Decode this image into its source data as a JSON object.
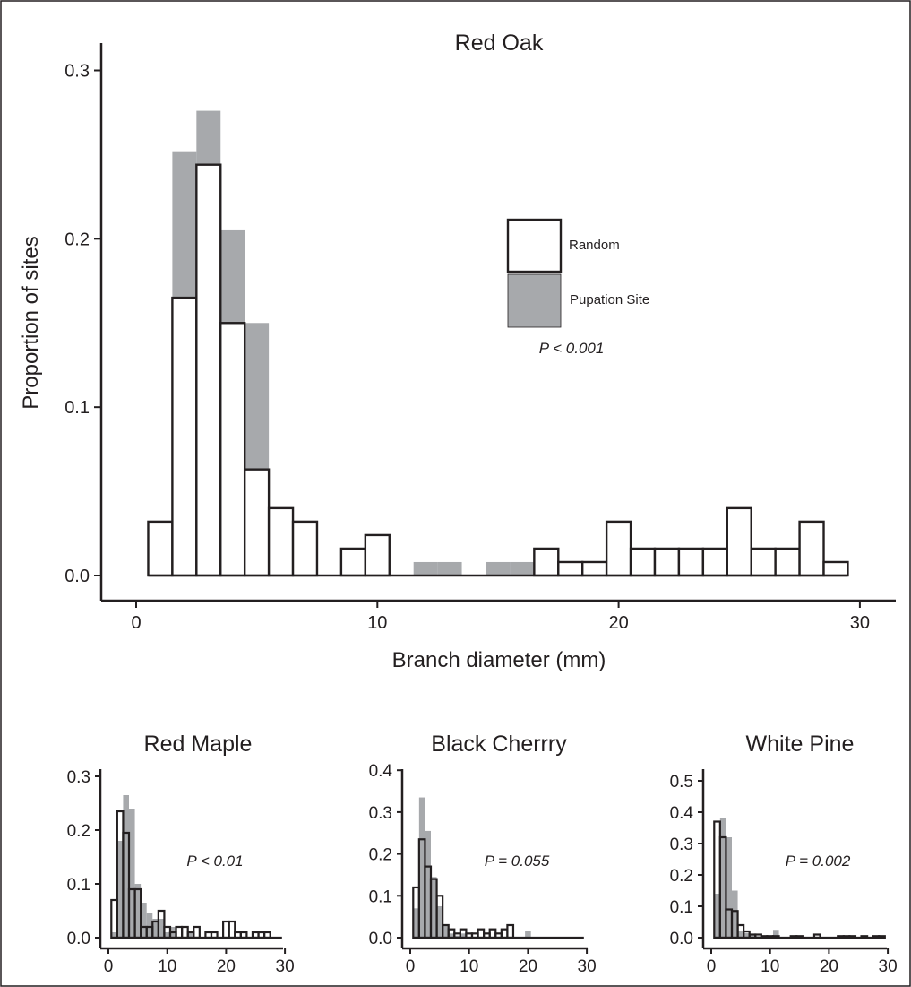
{
  "colors": {
    "pupation": "#a7a9ac",
    "random_fill": "#ffffff",
    "outline": "#231f20",
    "background": "#ffffff"
  },
  "main": {
    "title": "Red Oak",
    "xlabel": "Branch diameter (mm)",
    "ylabel": "Proportion of sites",
    "p_value": "P < 0.001",
    "legend": {
      "random": "Random",
      "pupation": "Pupation Site",
      "position": "upper-center"
    }
  },
  "panels": [
    {
      "title": "Red Maple",
      "p_value": "P < 0.01"
    },
    {
      "title": "Black Cherrry",
      "p_value": "P = 0.055"
    },
    {
      "title": "White Pine",
      "p_value": "P = 0.002"
    }
  ],
  "chart_data": [
    {
      "type": "bar",
      "subtype": "overlaid histogram",
      "title": "Red Oak",
      "xlabel": "Branch diameter (mm)",
      "ylabel": "Proportion of sites",
      "xlim": [
        0,
        30
      ],
      "ylim": [
        0,
        0.3
      ],
      "xticks": [
        0,
        10,
        20,
        30
      ],
      "yticks": [
        0.0,
        0.1,
        0.2,
        0.3
      ],
      "bin_width": 1,
      "x": [
        1,
        2,
        3,
        4,
        5,
        6,
        7,
        8,
        9,
        10,
        11,
        12,
        13,
        14,
        15,
        16,
        17,
        18,
        19,
        20,
        21,
        22,
        23,
        24,
        25,
        26,
        27,
        28,
        29
      ],
      "series": [
        {
          "name": "Random",
          "values": [
            0.032,
            0.165,
            0.244,
            0.15,
            0.063,
            0.04,
            0.032,
            0,
            0.016,
            0.024,
            0,
            0,
            0,
            0,
            0,
            0,
            0.016,
            0.008,
            0.008,
            0.032,
            0.016,
            0.016,
            0.016,
            0.016,
            0.04,
            0.016,
            0.016,
            0.032,
            0.008
          ]
        },
        {
          "name": "Pupation Site",
          "values": [
            0.016,
            0.252,
            0.276,
            0.205,
            0.15,
            0.024,
            0.032,
            0,
            0.016,
            0,
            0,
            0.008,
            0.008,
            0,
            0.008,
            0.008,
            0,
            0,
            0,
            0,
            0,
            0,
            0,
            0,
            0,
            0,
            0,
            0,
            0
          ]
        }
      ],
      "annotations": [
        "P < 0.001"
      ],
      "legend": "upper-center"
    },
    {
      "type": "bar",
      "subtype": "overlaid histogram",
      "title": "Red Maple",
      "xlim": [
        0,
        30
      ],
      "ylim": [
        0,
        0.3
      ],
      "xticks": [
        0,
        10,
        20,
        30
      ],
      "yticks": [
        0.0,
        0.1,
        0.2,
        0.3
      ],
      "bin_width": 1,
      "x": [
        1,
        2,
        3,
        4,
        5,
        6,
        7,
        8,
        9,
        10,
        11,
        12,
        13,
        14,
        15,
        16,
        17,
        18,
        19,
        20,
        21,
        22,
        23,
        24,
        25,
        26,
        27,
        28,
        29
      ],
      "series": [
        {
          "name": "Random",
          "values": [
            0.07,
            0.235,
            0.195,
            0.09,
            0.09,
            0.02,
            0.02,
            0.03,
            0.05,
            0.02,
            0.01,
            0.02,
            0.02,
            0.01,
            0.02,
            0,
            0.01,
            0.01,
            0,
            0.03,
            0.03,
            0.01,
            0.01,
            0,
            0.01,
            0.01,
            0.01,
            0,
            0
          ]
        },
        {
          "name": "Pupation Site",
          "values": [
            0.01,
            0.18,
            0.265,
            0.24,
            0.1,
            0.065,
            0.045,
            0.035,
            0.035,
            0.01,
            0.02,
            0,
            0,
            0.01,
            0,
            0,
            0,
            0,
            0,
            0,
            0,
            0,
            0,
            0,
            0,
            0,
            0,
            0,
            0
          ]
        }
      ],
      "annotations": [
        "P < 0.01"
      ]
    },
    {
      "type": "bar",
      "subtype": "overlaid histogram",
      "title": "Black Cherrry",
      "xlim": [
        0,
        30
      ],
      "ylim": [
        0,
        0.4
      ],
      "xticks": [
        0,
        10,
        20,
        30
      ],
      "yticks": [
        0.0,
        0.1,
        0.2,
        0.3,
        0.4
      ],
      "bin_width": 1,
      "x": [
        1,
        2,
        3,
        4,
        5,
        6,
        7,
        8,
        9,
        10,
        11,
        12,
        13,
        14,
        15,
        16,
        17,
        18,
        19,
        20,
        21,
        22,
        23,
        24,
        25,
        26,
        27,
        28,
        29
      ],
      "series": [
        {
          "name": "Random",
          "values": [
            0.12,
            0.235,
            0.17,
            0.14,
            0.1,
            0.03,
            0.02,
            0.01,
            0.02,
            0.01,
            0.01,
            0.02,
            0.01,
            0.02,
            0.01,
            0.02,
            0.03,
            0,
            0,
            0,
            0,
            0,
            0,
            0,
            0,
            0,
            0,
            0,
            0
          ]
        },
        {
          "name": "Pupation Site",
          "values": [
            0.07,
            0.335,
            0.255,
            0.145,
            0.075,
            0.03,
            0.01,
            0.005,
            0.01,
            0,
            0,
            0,
            0,
            0,
            0,
            0,
            0,
            0,
            0,
            0.015,
            0,
            0,
            0,
            0,
            0,
            0,
            0,
            0,
            0
          ]
        }
      ],
      "annotations": [
        "P = 0.055"
      ]
    },
    {
      "type": "bar",
      "subtype": "overlaid histogram",
      "title": "White Pine",
      "xlim": [
        0,
        30
      ],
      "ylim": [
        0,
        0.5
      ],
      "xticks": [
        0,
        10,
        20,
        30
      ],
      "yticks": [
        0.0,
        0.1,
        0.2,
        0.3,
        0.4,
        0.5
      ],
      "bin_width": 1,
      "x": [
        1,
        2,
        3,
        4,
        5,
        6,
        7,
        8,
        9,
        10,
        11,
        12,
        13,
        14,
        15,
        16,
        17,
        18,
        19,
        20,
        21,
        22,
        23,
        24,
        25,
        26,
        27,
        28,
        29
      ],
      "series": [
        {
          "name": "Random",
          "values": [
            0.37,
            0.32,
            0.09,
            0.085,
            0.04,
            0.02,
            0.01,
            0.01,
            0.005,
            0.005,
            0.005,
            0,
            0,
            0.005,
            0.005,
            0,
            0,
            0.01,
            0,
            0,
            0,
            0.005,
            0.005,
            0.005,
            0,
            0.005,
            0,
            0.005,
            0.005
          ]
        },
        {
          "name": "Pupation Site",
          "values": [
            0.14,
            0.38,
            0.32,
            0.15,
            0.02,
            0.015,
            0.01,
            0.005,
            0,
            0,
            0.025,
            0,
            0,
            0,
            0,
            0,
            0,
            0,
            0,
            0,
            0,
            0,
            0,
            0,
            0,
            0,
            0,
            0,
            0
          ]
        }
      ],
      "annotations": [
        "P = 0.002"
      ]
    }
  ]
}
